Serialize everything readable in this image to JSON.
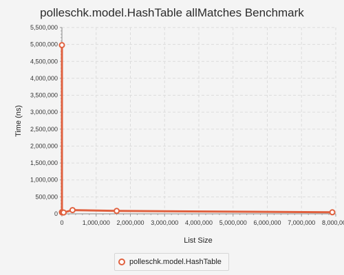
{
  "chart_data": {
    "type": "line",
    "title": "polleschk.model.HashTable allMatches Benchmark",
    "xlabel": "List Size",
    "ylabel": "Time (ns)",
    "xlim": [
      0,
      8000000
    ],
    "ylim": [
      0,
      5500000
    ],
    "x_ticks": [
      {
        "value": 0,
        "label": "0"
      },
      {
        "value": 1000000,
        "label": "1,000,000"
      },
      {
        "value": 2000000,
        "label": "2,000,000"
      },
      {
        "value": 3000000,
        "label": "3,000,000"
      },
      {
        "value": 4000000,
        "label": "4,000,000"
      },
      {
        "value": 5000000,
        "label": "5,000,000"
      },
      {
        "value": 6000000,
        "label": "6,000,000"
      },
      {
        "value": 7000000,
        "label": "7,000,000"
      },
      {
        "value": 8000000,
        "label": "8,000,000"
      }
    ],
    "y_ticks": [
      {
        "value": 0,
        "label": "0"
      },
      {
        "value": 500000,
        "label": "500,000"
      },
      {
        "value": 1000000,
        "label": "1,000,000"
      },
      {
        "value": 1500000,
        "label": "1,500,000"
      },
      {
        "value": 2000000,
        "label": "2,000,000"
      },
      {
        "value": 2500000,
        "label": "2,500,000"
      },
      {
        "value": 3000000,
        "label": "3,000,000"
      },
      {
        "value": 3500000,
        "label": "3,500,000"
      },
      {
        "value": 4000000,
        "label": "4,000,000"
      },
      {
        "value": 4500000,
        "label": "4,500,000"
      },
      {
        "value": 5000000,
        "label": "5,000,000"
      },
      {
        "value": 5500000,
        "label": "5,500,000"
      }
    ],
    "grid": true,
    "legend_position": "bottom-center",
    "series": [
      {
        "name": "polleschk.model.HashTable",
        "color": "#e0603e",
        "marker": "hollow-circle",
        "points": [
          {
            "x": 10,
            "y": 4980000
          },
          {
            "x": 100,
            "y": 50000
          },
          {
            "x": 1000,
            "y": 45000
          },
          {
            "x": 10000,
            "y": 40000
          },
          {
            "x": 50000,
            "y": 38000
          },
          {
            "x": 310000,
            "y": 110000
          },
          {
            "x": 1600000,
            "y": 85000
          },
          {
            "x": 7900000,
            "y": 45000
          }
        ]
      }
    ]
  }
}
